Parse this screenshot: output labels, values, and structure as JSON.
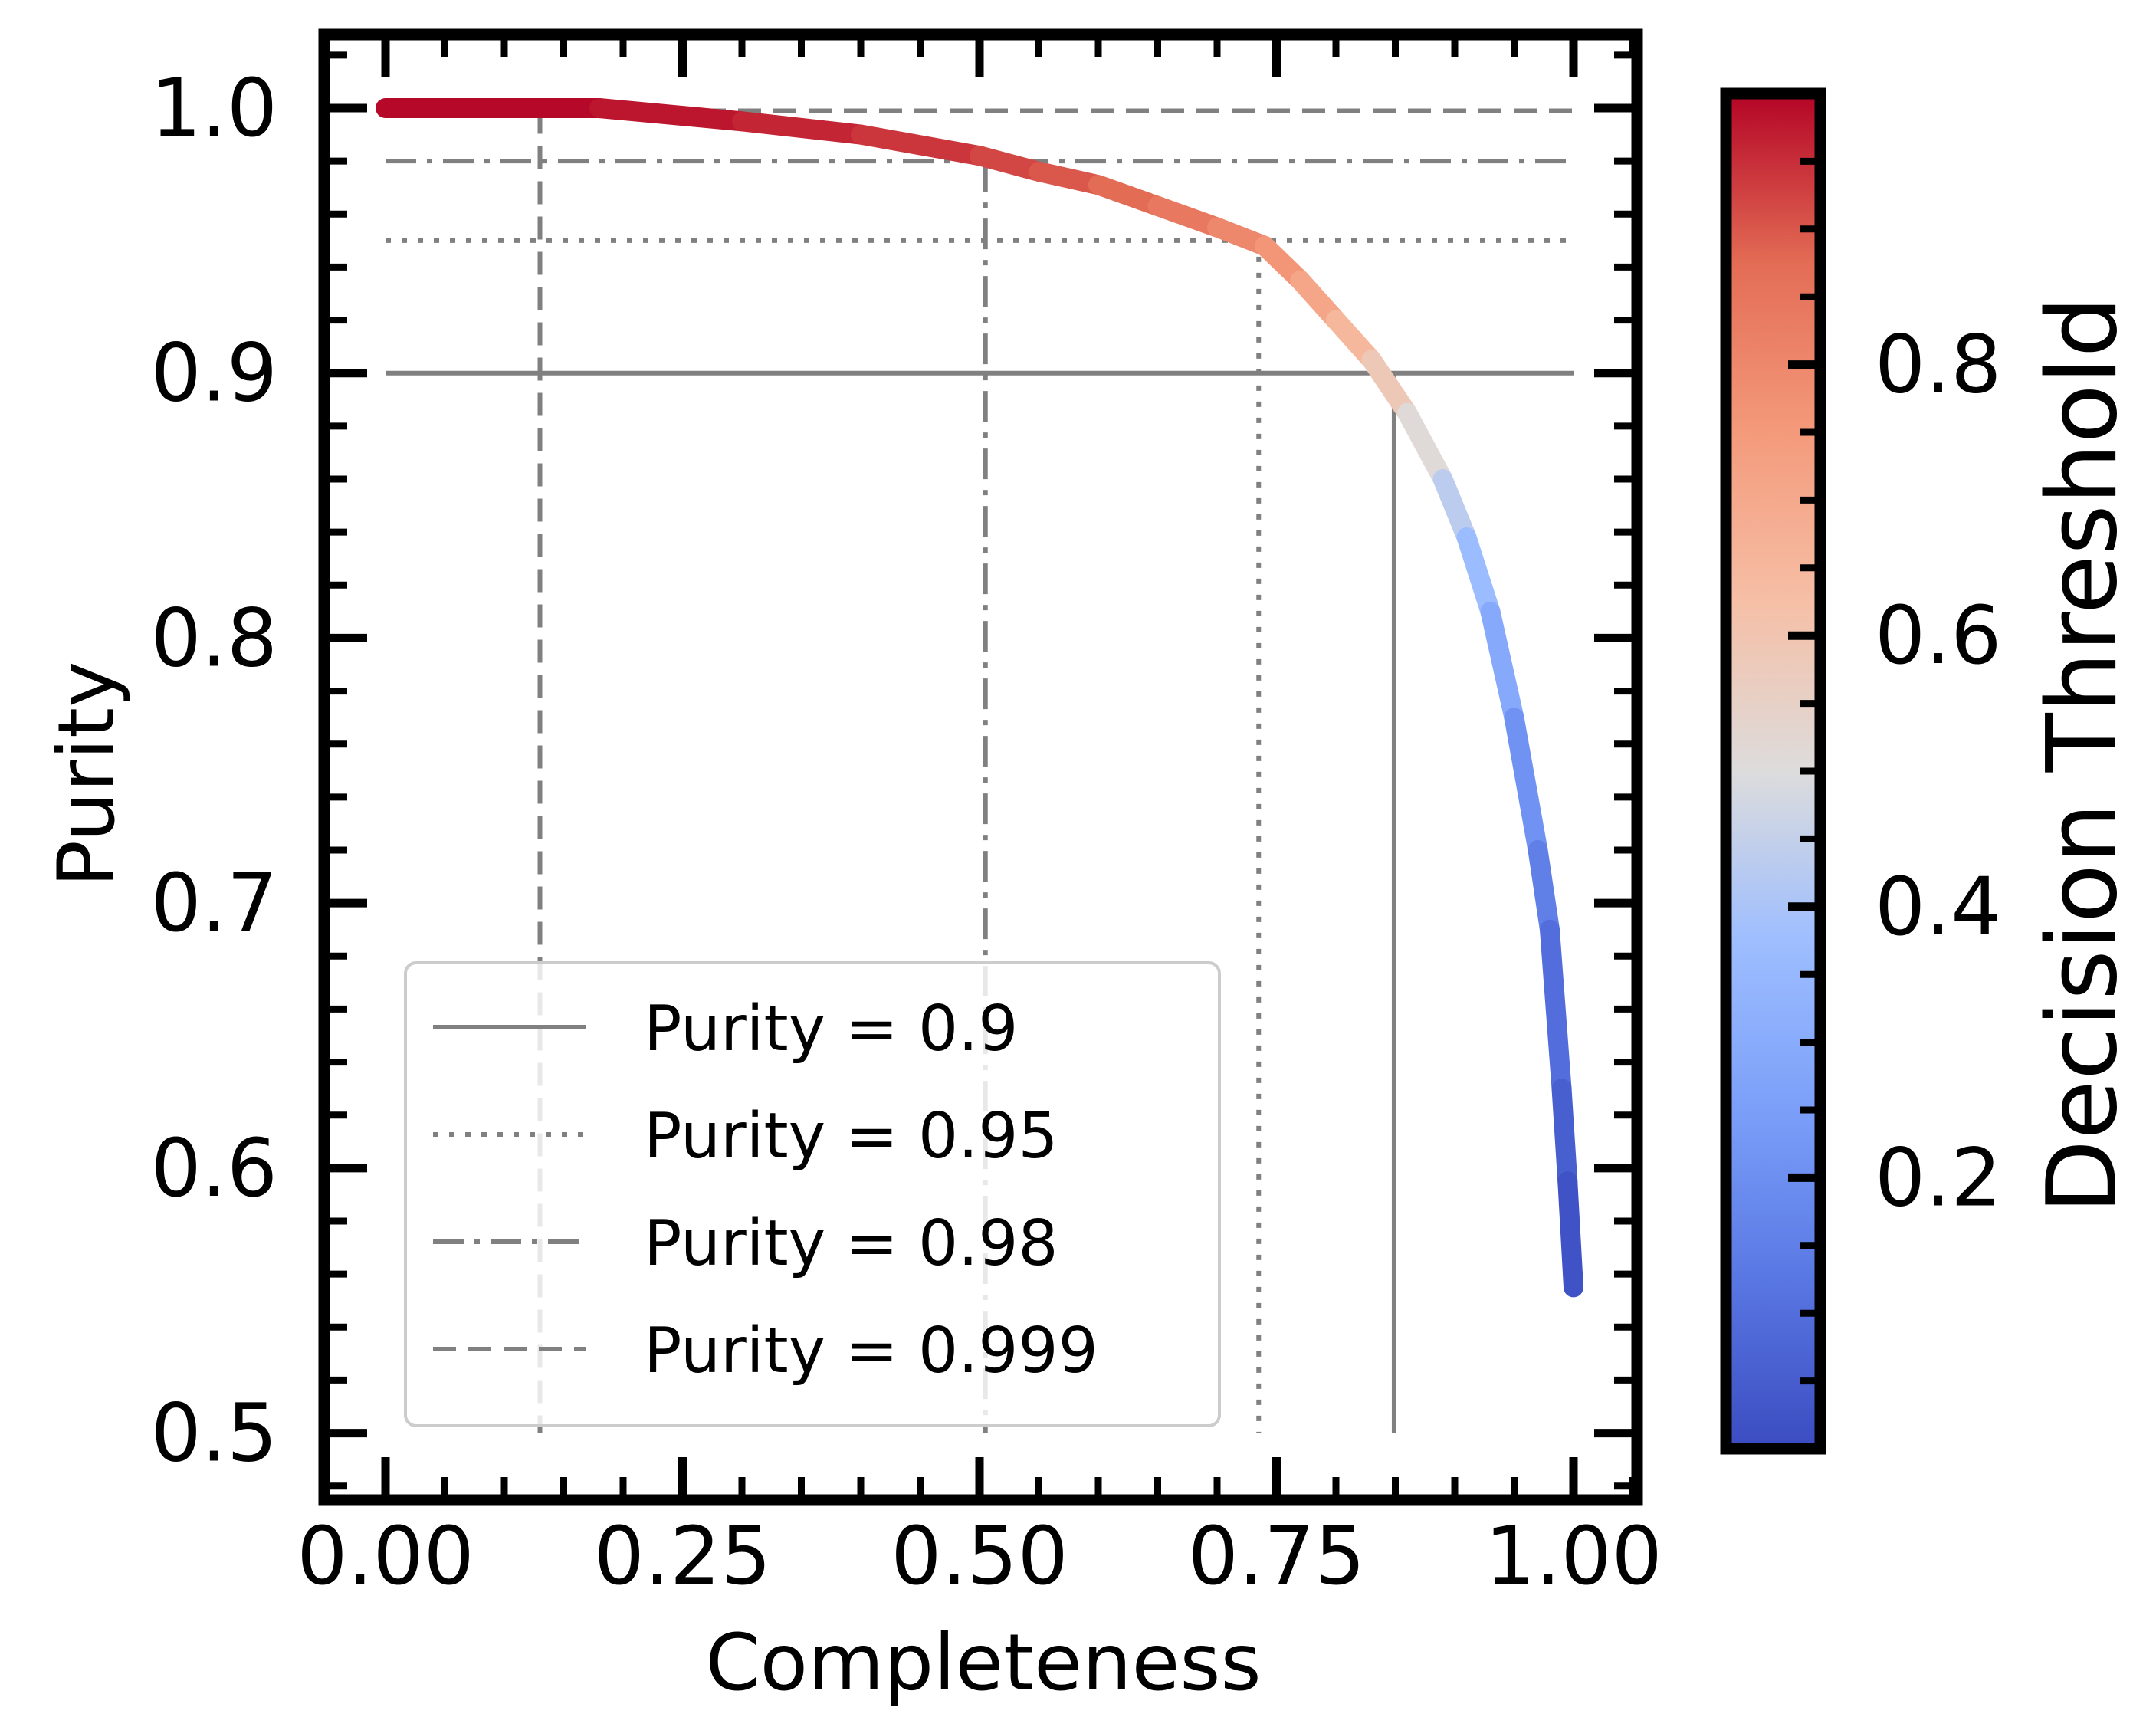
{
  "chart_data": {
    "type": "line",
    "xlabel": "Completeness",
    "ylabel": "Purity",
    "xlim": [
      -0.1,
      1.08
    ],
    "ylim": [
      0.48,
      1.03
    ],
    "xticks": [
      "0.00",
      "0.25",
      "0.50",
      "0.75",
      "1.00"
    ],
    "xtick_values": [
      0,
      0.25,
      0.5,
      0.75,
      1.0
    ],
    "yticks": [
      "0.5",
      "0.6",
      "0.7",
      "0.8",
      "0.9",
      "1.0"
    ],
    "ytick_values": [
      0.5,
      0.6,
      0.7,
      0.8,
      0.9,
      1.0
    ],
    "grid": false,
    "legend_position": "lower-left",
    "colormap": "coolwarm",
    "colorbar": {
      "label": "Decision Threshold",
      "range": [
        0,
        1
      ],
      "ticks": [
        "0.2",
        "0.4",
        "0.6",
        "0.8"
      ],
      "tick_values": [
        0.2,
        0.4,
        0.6,
        0.8
      ]
    },
    "curve": {
      "name": "",
      "points": [
        {
          "x": 0.0,
          "y": 1.0,
          "t": 1.0
        },
        {
          "x": 0.18,
          "y": 1.0,
          "t": 0.99
        },
        {
          "x": 0.3,
          "y": 0.995,
          "t": 0.97
        },
        {
          "x": 0.4,
          "y": 0.99,
          "t": 0.95
        },
        {
          "x": 0.5,
          "y": 0.982,
          "t": 0.93
        },
        {
          "x": 0.55,
          "y": 0.976,
          "t": 0.91
        },
        {
          "x": 0.6,
          "y": 0.971,
          "t": 0.89
        },
        {
          "x": 0.65,
          "y": 0.963,
          "t": 0.86
        },
        {
          "x": 0.7,
          "y": 0.955,
          "t": 0.82
        },
        {
          "x": 0.74,
          "y": 0.948,
          "t": 0.78
        },
        {
          "x": 0.77,
          "y": 0.935,
          "t": 0.74
        },
        {
          "x": 0.8,
          "y": 0.92,
          "t": 0.68
        },
        {
          "x": 0.83,
          "y": 0.905,
          "t": 0.62
        },
        {
          "x": 0.86,
          "y": 0.885,
          "t": 0.55
        },
        {
          "x": 0.89,
          "y": 0.86,
          "t": 0.47
        },
        {
          "x": 0.91,
          "y": 0.838,
          "t": 0.4
        },
        {
          "x": 0.93,
          "y": 0.81,
          "t": 0.33
        },
        {
          "x": 0.95,
          "y": 0.77,
          "t": 0.25
        },
        {
          "x": 0.97,
          "y": 0.72,
          "t": 0.17
        },
        {
          "x": 0.98,
          "y": 0.69,
          "t": 0.13
        },
        {
          "x": 0.99,
          "y": 0.63,
          "t": 0.07
        },
        {
          "x": 0.995,
          "y": 0.595,
          "t": 0.04
        },
        {
          "x": 1.0,
          "y": 0.555,
          "t": 0.0
        }
      ]
    },
    "reference_lines": [
      {
        "name": "Purity = 0.9",
        "purity": 0.9,
        "completeness": 0.849,
        "style": "solid"
      },
      {
        "name": "Purity = 0.95",
        "purity": 0.95,
        "completeness": 0.735,
        "style": "dotted"
      },
      {
        "name": "Purity = 0.98",
        "purity": 0.98,
        "completeness": 0.505,
        "style": "dashdot"
      },
      {
        "name": "Purity = 0.999",
        "purity": 0.999,
        "completeness": 0.13,
        "style": "dashed"
      }
    ],
    "colors": {
      "reference_line": "#808080",
      "frame": "#000000"
    }
  }
}
